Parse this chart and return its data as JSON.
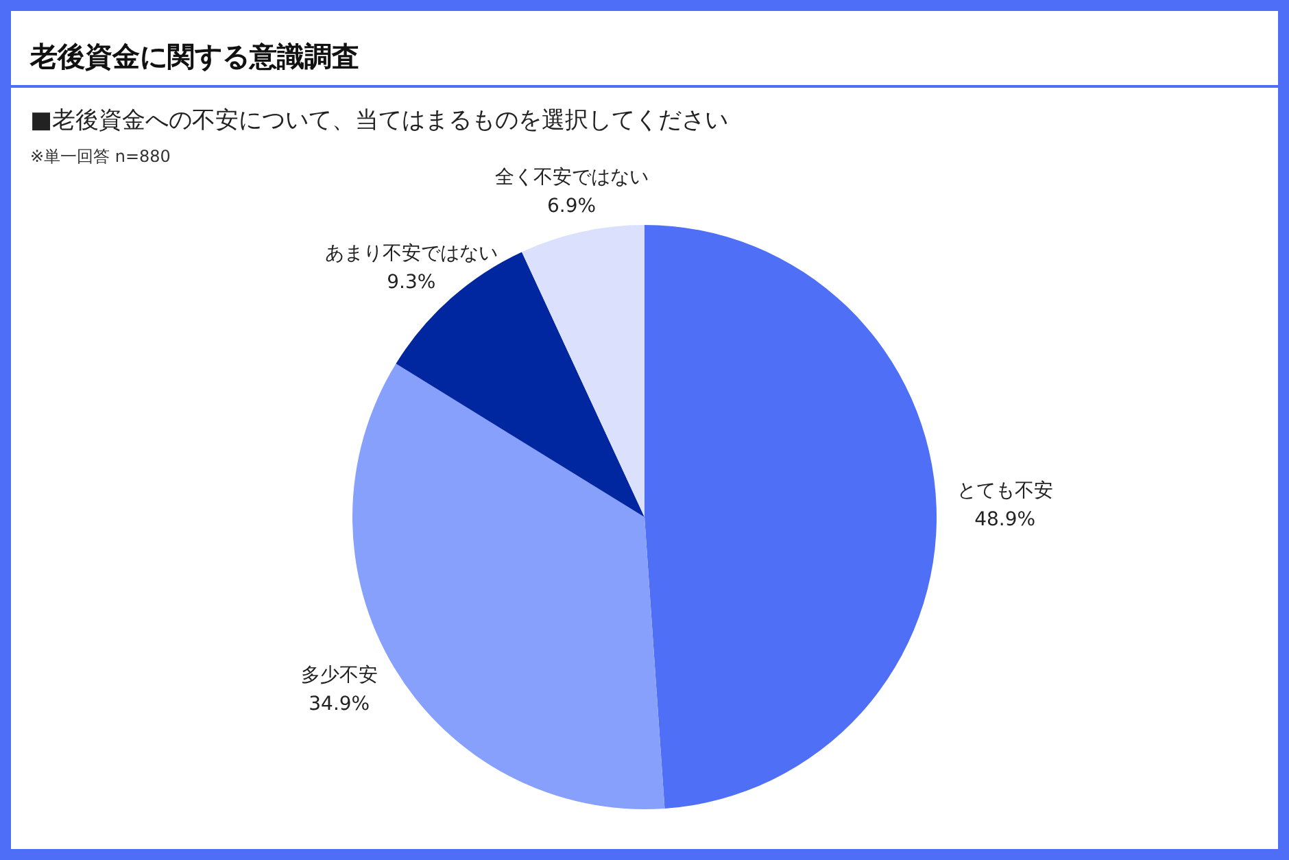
{
  "chart_data": {
    "type": "pie",
    "title": "老後資金に関する意識調査",
    "subtitle": "■老後資金への不安について、当てはまるものを選択してください",
    "annotations": [
      "※単一回答 n=880"
    ],
    "categories": [
      "とても不安",
      "多少不安",
      "あまり不安ではない",
      "全く不安ではない"
    ],
    "values": [
      48.9,
      34.9,
      9.3,
      6.9
    ],
    "colors": [
      "#4f6ff7",
      "#87a0fc",
      "#0026a0",
      "#dbe1fc"
    ],
    "value_labels": [
      "48.9%",
      "34.9%",
      "9.3%",
      "6.9%"
    ],
    "legend": false
  }
}
